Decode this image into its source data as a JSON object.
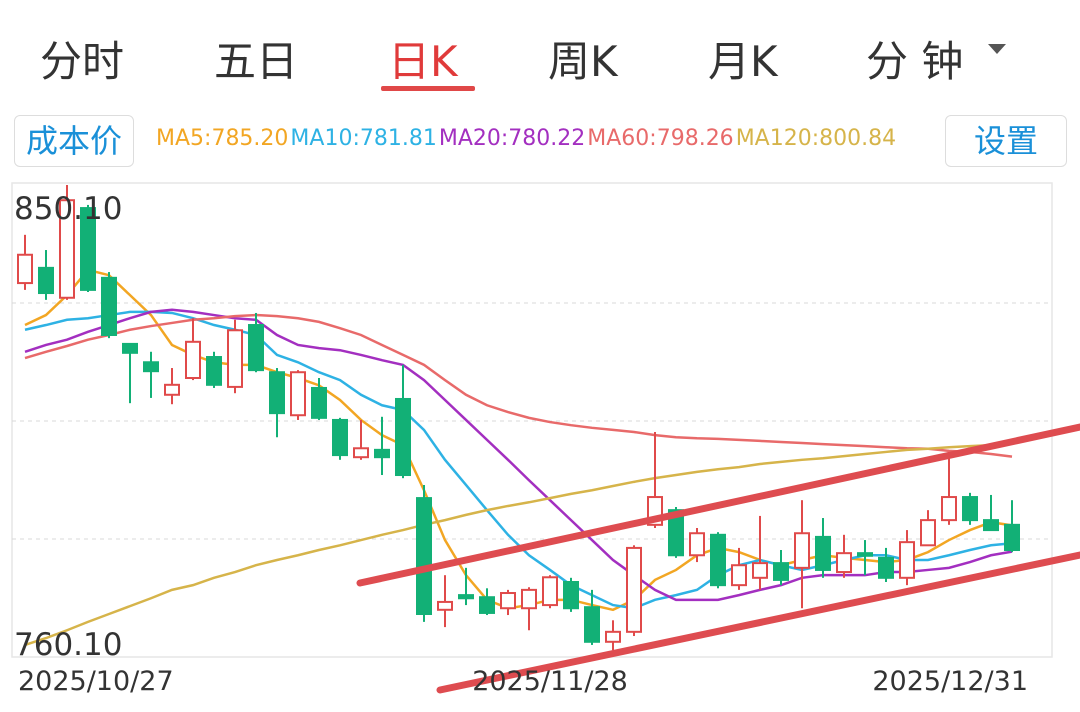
{
  "tabs": [
    "分时",
    "五日",
    "日K",
    "周K",
    "月K",
    "分 钟"
  ],
  "buttons": {
    "cost": "成本价",
    "settings": "设置"
  },
  "chart_data": {
    "type": "candlestick",
    "categories": [
      "2025/10/27",
      null,
      null,
      null,
      null,
      null,
      null,
      null,
      null,
      null,
      null,
      null,
      null,
      null,
      null,
      null,
      null,
      null,
      null,
      null,
      null,
      null,
      null,
      null,
      null,
      "2025/11/28",
      null,
      null,
      null,
      null,
      null,
      null,
      null,
      null,
      null,
      null,
      null,
      null,
      null,
      null,
      null,
      null,
      null,
      null,
      null,
      null,
      null,
      "2025/12/31"
    ],
    "open": [
      831.4,
      834.3,
      828.6,
      845.7,
      832.4,
      819.8,
      816.3,
      810.1,
      813.3,
      817.3,
      811.6,
      823.4,
      814.4,
      806.2,
      811.4,
      805.3,
      798.2,
      799.6,
      809.3,
      790.4,
      769.1,
      771.9,
      771.5,
      769.4,
      769.4,
      770.0,
      774.4,
      769.6,
      763.0,
      764.9,
      785.3,
      788.1,
      779.5,
      783.4,
      773.8,
      775.2,
      778.0,
      777.1,
      783.0,
      776.3,
      779.9,
      779.0,
      775.2,
      781.4,
      786.2,
      790.6,
      786.2,
      785.3
    ],
    "high": [
      840.6,
      837.7,
      850.1,
      846.3,
      833.5,
      819.8,
      818.3,
      815.2,
      824.7,
      818.3,
      824.4,
      825.7,
      815.2,
      814.8,
      813.3,
      805.7,
      805.3,
      805.9,
      815.8,
      792.9,
      775.7,
      777.1,
      773.2,
      772.9,
      773.4,
      775.7,
      775.2,
      772.9,
      767.1,
      781.4,
      803.0,
      788.7,
      784.7,
      783.9,
      780.9,
      787.0,
      780.5,
      790.0,
      786.6,
      783.4,
      782.4,
      780.9,
      784.3,
      788.1,
      798.6,
      791.4,
      791.0,
      790.0
    ],
    "low": [
      830.1,
      828.2,
      828.2,
      829.7,
      820.9,
      808.5,
      809.5,
      808.3,
      812.9,
      811.4,
      810.4,
      814.4,
      802.0,
      805.3,
      805.3,
      797.7,
      797.7,
      794.8,
      794.2,
      766.8,
      765.8,
      770.0,
      768.1,
      768.1,
      765.2,
      769.4,
      768.7,
      762.4,
      761.4,
      764.1,
      784.7,
      779.0,
      778.2,
      773.2,
      772.9,
      772.9,
      773.8,
      769.4,
      775.2,
      775.2,
      775.7,
      774.4,
      773.8,
      781.4,
      785.3,
      785.3,
      784.9,
      780.1
    ],
    "close": [
      836.8,
      829.5,
      847.2,
      830.1,
      821.5,
      818.1,
      814.6,
      812.0,
      820.2,
      812.0,
      822.4,
      814.8,
      806.6,
      814.4,
      805.7,
      798.6,
      799.9,
      798.2,
      794.8,
      768.3,
      770.6,
      771.3,
      768.5,
      772.3,
      772.9,
      775.3,
      769.4,
      763.0,
      764.9,
      780.9,
      790.6,
      779.5,
      783.7,
      773.8,
      777.6,
      778.0,
      774.8,
      783.7,
      776.7,
      779.9,
      779.4,
      775.2,
      782.0,
      786.2,
      790.6,
      786.2,
      784.3,
      780.5
    ],
    "up_color": "#e04a4a",
    "down_color": "#12b076",
    "series": [
      {
        "name": "MA5:785.20",
        "color": "#f2a623",
        "values": [
          823.4,
          825.3,
          829.1,
          833.9,
          832.9,
          829.1,
          825.3,
          819.6,
          817.7,
          816.3,
          815.8,
          815.8,
          814.4,
          813.3,
          811.9,
          809.1,
          805.3,
          802.4,
          800.5,
          791.9,
          782.4,
          775.7,
          771.0,
          769.4,
          770.0,
          771.0,
          771.0,
          770.0,
          769.1,
          771.0,
          774.8,
          776.7,
          779.5,
          780.9,
          780.1,
          778.6,
          777.6,
          778.6,
          779.5,
          779.0,
          778.6,
          778.2,
          778.6,
          780.1,
          782.4,
          784.3,
          785.8,
          785.2
        ]
      },
      {
        "name": "MA10:781.81",
        "color": "#2eb2e4",
        "values": [
          822.5,
          823.4,
          824.4,
          824.7,
          825.3,
          825.9,
          825.9,
          825.7,
          824.7,
          823.4,
          822.5,
          821.5,
          817.7,
          816.3,
          814.4,
          812.9,
          810.1,
          808.1,
          807.2,
          803.4,
          797.7,
          792.9,
          788.1,
          783.4,
          779.5,
          776.7,
          773.8,
          771.9,
          770.0,
          769.4,
          771.0,
          771.9,
          772.9,
          775.7,
          777.6,
          778.6,
          777.6,
          776.7,
          777.6,
          778.6,
          779.5,
          779.5,
          778.6,
          778.6,
          779.5,
          780.5,
          781.4,
          781.8
        ]
      },
      {
        "name": "MA20:780.22",
        "color": "#a32fc0",
        "values": [
          818.3,
          819.6,
          820.6,
          822.1,
          823.4,
          824.7,
          825.9,
          826.3,
          825.9,
          825.3,
          824.7,
          824.4,
          821.5,
          819.6,
          819.0,
          818.6,
          817.7,
          816.7,
          815.8,
          812.9,
          809.1,
          805.3,
          801.5,
          797.7,
          793.8,
          790.0,
          786.2,
          782.4,
          778.6,
          775.7,
          772.9,
          771.0,
          771.0,
          771.0,
          771.9,
          772.9,
          773.8,
          775.2,
          775.7,
          775.7,
          775.7,
          776.3,
          776.3,
          776.7,
          777.1,
          778.2,
          779.5,
          780.2
        ]
      },
      {
        "name": "MA60:798.26",
        "color": "#e86a6a",
        "values": [
          817.1,
          818.3,
          819.4,
          820.6,
          821.5,
          822.5,
          823.2,
          823.8,
          824.4,
          824.7,
          825.1,
          825.3,
          825.1,
          824.7,
          824.0,
          822.8,
          821.5,
          819.6,
          817.7,
          815.8,
          812.9,
          810.1,
          808.1,
          806.8,
          805.7,
          804.9,
          804.3,
          803.8,
          803.4,
          803.0,
          802.4,
          802.0,
          801.8,
          801.7,
          801.5,
          801.3,
          801.1,
          800.9,
          800.7,
          800.5,
          800.3,
          800.1,
          799.9,
          799.8,
          799.4,
          799.2,
          798.8,
          798.3
        ]
      },
      {
        "name": "MA120:800.84",
        "color": "#d6b44a",
        "values": [
          762.4,
          763.7,
          765.2,
          766.8,
          768.3,
          769.8,
          771.3,
          772.9,
          773.8,
          775.2,
          776.3,
          777.6,
          778.6,
          779.5,
          780.5,
          781.4,
          782.4,
          783.4,
          784.3,
          785.3,
          786.2,
          787.2,
          788.1,
          788.9,
          789.6,
          790.4,
          791.2,
          791.9,
          792.7,
          793.5,
          794.2,
          794.8,
          795.4,
          795.9,
          796.3,
          796.9,
          797.3,
          797.7,
          798.0,
          798.4,
          798.8,
          799.2,
          799.6,
          799.8,
          800.1,
          800.3,
          800.5,
          800.8
        ]
      }
    ],
    "ylim": [
      760.1,
      850.1
    ],
    "yticks": [
      {
        "value": 850.1,
        "label": "850.10"
      },
      {
        "value": 760.1,
        "label": "760.10"
      }
    ],
    "grid": true
  }
}
